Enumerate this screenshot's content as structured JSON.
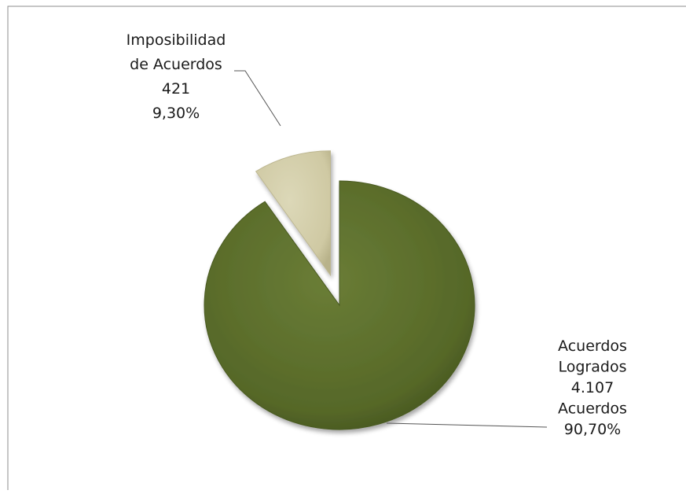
{
  "chart_data": {
    "type": "pie",
    "title": "",
    "exploded": true,
    "slices": [
      {
        "label_lines": [
          "Acuerdos",
          "Logrados",
          "4.107",
          "Acuerdos",
          "90,70%"
        ],
        "value": 4107,
        "percent": 90.7,
        "color": "#5a6b2b"
      },
      {
        "label_lines": [
          "Imposibilidad",
          "de Acuerdos",
          "421",
          "9,30%"
        ],
        "value": 421,
        "percent": 9.3,
        "color": "#d3ceaa"
      }
    ]
  }
}
